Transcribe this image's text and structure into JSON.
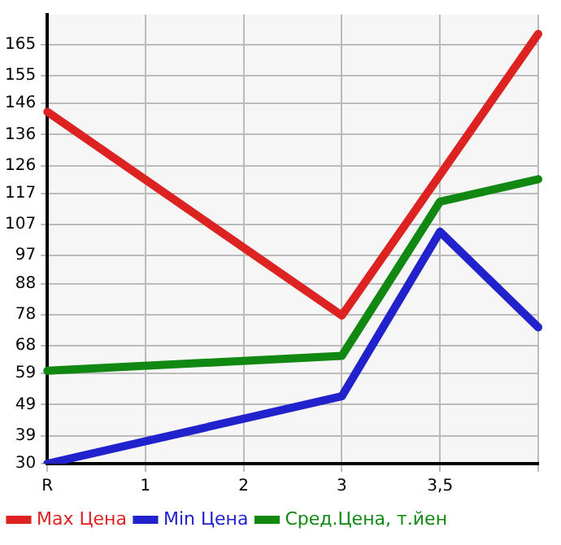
{
  "chart_data": {
    "type": "line",
    "categories": [
      "R",
      "1",
      "2",
      "3",
      "3,5",
      null
    ],
    "series": [
      {
        "name": "Max Цена",
        "color": "#dd2222",
        "values": [
          143.3,
          null,
          null,
          77.7,
          123,
          168.4
        ]
      },
      {
        "name": "Min Цена",
        "color": "#2222cc",
        "values": [
          30,
          null,
          null,
          51.7,
          104.7,
          73.9
        ]
      },
      {
        "name": "Сред.Цена, т.йен",
        "color": "#118811",
        "values": [
          59.9,
          null,
          null,
          64.7,
          114.4,
          121.6
        ]
      }
    ],
    "ylim": [
      30,
      174.6
    ],
    "yticks": [
      30,
      39,
      49,
      59,
      68,
      78,
      88,
      97,
      107,
      117,
      126,
      136,
      146,
      155,
      165
    ],
    "grid": true,
    "legend": "bottom",
    "marker": "none",
    "line_style": "solid"
  }
}
